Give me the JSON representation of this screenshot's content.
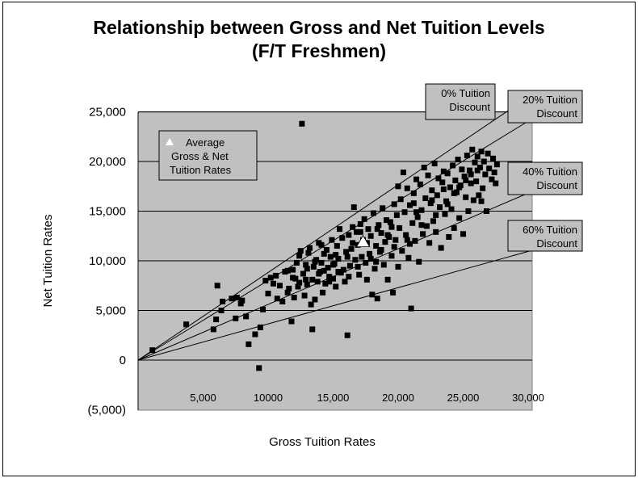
{
  "chart_data": {
    "type": "scatter",
    "title": "Relationship between Gross and Net Tuition Levels",
    "subtitle": "(F/T Freshmen)",
    "xlabel": "Gross Tuition Rates",
    "ylabel": "Net Tuition Rates",
    "xlim": [
      0,
      30000
    ],
    "ylim": [
      -5000,
      25000
    ],
    "x_tick_labels": [
      "5,000",
      "10000",
      "15,000",
      "20,000",
      "25,000",
      "30,000"
    ],
    "x_tick_values": [
      5000,
      10000,
      15000,
      20000,
      25000,
      30000
    ],
    "y_tick_labels": [
      "(5,000)",
      "0",
      "5,000",
      "10,000",
      "15,000",
      "20,000",
      "25,000"
    ],
    "y_tick_values": [
      -5000,
      0,
      5000,
      10000,
      15000,
      20000,
      25000
    ],
    "grid": "horizontal",
    "reference_lines": [
      {
        "label": "0% Tuition Discount",
        "slope": 1.0,
        "label_lines": [
          "0% Tuition",
          "Discount"
        ]
      },
      {
        "label": "20% Tuition Discount",
        "slope": 0.8,
        "label_lines": [
          "20% Tuition",
          "Discount"
        ]
      },
      {
        "label": "40% Tuition Discount",
        "slope": 0.6,
        "label_lines": [
          "40% Tuition",
          "Discount"
        ]
      },
      {
        "label": "60% Tuition Discount",
        "slope": 0.4,
        "label_lines": [
          "60% Tuition",
          "Discount"
        ]
      }
    ],
    "legend_lines": [
      "Average",
      "Gross & Net",
      "Tuition Rates"
    ],
    "average_point": {
      "x": 17300,
      "y": 11900
    },
    "points": [
      [
        1100,
        1000
      ],
      [
        3700,
        3600
      ],
      [
        5800,
        3100
      ],
      [
        6000,
        4100
      ],
      [
        6100,
        7500
      ],
      [
        6400,
        5000
      ],
      [
        6500,
        5900
      ],
      [
        7200,
        6200
      ],
      [
        7500,
        4200
      ],
      [
        7600,
        6300
      ],
      [
        7900,
        5700
      ],
      [
        8000,
        6000
      ],
      [
        8300,
        4400
      ],
      [
        8500,
        1600
      ],
      [
        9000,
        2600
      ],
      [
        9300,
        -800
      ],
      [
        9400,
        3300
      ],
      [
        9600,
        5100
      ],
      [
        9800,
        8000
      ],
      [
        10000,
        6700
      ],
      [
        10200,
        8300
      ],
      [
        10400,
        7700
      ],
      [
        10600,
        8500
      ],
      [
        10700,
        6200
      ],
      [
        10900,
        7500
      ],
      [
        11100,
        5900
      ],
      [
        11300,
        8900
      ],
      [
        11500,
        9000
      ],
      [
        11600,
        7200
      ],
      [
        11800,
        3900
      ],
      [
        11900,
        8300
      ],
      [
        12000,
        6300
      ],
      [
        12200,
        9800
      ],
      [
        12300,
        7400
      ],
      [
        12400,
        10500
      ],
      [
        12500,
        11000
      ],
      [
        12600,
        23800
      ],
      [
        12700,
        8700
      ],
      [
        12800,
        6500
      ],
      [
        12900,
        9600
      ],
      [
        13000,
        7600
      ],
      [
        13100,
        10800
      ],
      [
        13200,
        11300
      ],
      [
        13300,
        5600
      ],
      [
        13400,
        8100
      ],
      [
        13400,
        3100
      ],
      [
        13500,
        9400
      ],
      [
        13600,
        6100
      ],
      [
        13700,
        10100
      ],
      [
        13800,
        7900
      ],
      [
        13900,
        11800
      ],
      [
        14000,
        8900
      ],
      [
        14100,
        9800
      ],
      [
        14200,
        6800
      ],
      [
        14300,
        10700
      ],
      [
        14400,
        7700
      ],
      [
        14500,
        11100
      ],
      [
        14600,
        9300
      ],
      [
        14700,
        8400
      ],
      [
        14800,
        10400
      ],
      [
        14900,
        12100
      ],
      [
        15000,
        8200
      ],
      [
        15100,
        9700
      ],
      [
        15200,
        7400
      ],
      [
        15300,
        11500
      ],
      [
        15400,
        10200
      ],
      [
        15500,
        13200
      ],
      [
        15600,
        8800
      ],
      [
        15700,
        12300
      ],
      [
        15800,
        9100
      ],
      [
        15900,
        7900
      ],
      [
        16000,
        10900
      ],
      [
        16100,
        2500
      ],
      [
        16200,
        12600
      ],
      [
        16300,
        9500
      ],
      [
        16400,
        11200
      ],
      [
        16500,
        13400
      ],
      [
        16600,
        15400
      ],
      [
        16700,
        10100
      ],
      [
        16800,
        12900
      ],
      [
        16900,
        11600
      ],
      [
        17000,
        8600
      ],
      [
        17100,
        13700
      ],
      [
        17200,
        10400
      ],
      [
        17300,
        12100
      ],
      [
        17400,
        14200
      ],
      [
        17500,
        9800
      ],
      [
        17600,
        11800
      ],
      [
        17700,
        13200
      ],
      [
        17800,
        10700
      ],
      [
        17900,
        12500
      ],
      [
        18000,
        6600
      ],
      [
        18100,
        14800
      ],
      [
        18200,
        9200
      ],
      [
        18300,
        11500
      ],
      [
        18400,
        6200
      ],
      [
        18500,
        13600
      ],
      [
        18600,
        10900
      ],
      [
        18700,
        12800
      ],
      [
        18800,
        15300
      ],
      [
        18900,
        9600
      ],
      [
        19000,
        11900
      ],
      [
        19100,
        14100
      ],
      [
        19200,
        8100
      ],
      [
        19300,
        12400
      ],
      [
        19400,
        13900
      ],
      [
        19500,
        10500
      ],
      [
        19600,
        6800
      ],
      [
        19700,
        15700
      ],
      [
        19800,
        12100
      ],
      [
        19900,
        14600
      ],
      [
        20000,
        9400
      ],
      [
        20100,
        13300
      ],
      [
        20200,
        16200
      ],
      [
        20300,
        11000
      ],
      [
        20400,
        18900
      ],
      [
        20500,
        14900
      ],
      [
        20600,
        12600
      ],
      [
        20700,
        17300
      ],
      [
        20800,
        10300
      ],
      [
        20900,
        15600
      ],
      [
        21000,
        5200
      ],
      [
        21100,
        13800
      ],
      [
        21200,
        16800
      ],
      [
        21300,
        12000
      ],
      [
        21400,
        18200
      ],
      [
        21500,
        14400
      ],
      [
        21600,
        9900
      ],
      [
        21700,
        17700
      ],
      [
        21800,
        15100
      ],
      [
        21900,
        12700
      ],
      [
        22000,
        19400
      ],
      [
        22100,
        16300
      ],
      [
        22200,
        13500
      ],
      [
        22300,
        18600
      ],
      [
        22400,
        11800
      ],
      [
        22500,
        15800
      ],
      [
        22600,
        17100
      ],
      [
        22700,
        14000
      ],
      [
        22800,
        19800
      ],
      [
        22900,
        12900
      ],
      [
        23000,
        16600
      ],
      [
        23100,
        18300
      ],
      [
        23200,
        15400
      ],
      [
        23300,
        11300
      ],
      [
        23400,
        17900
      ],
      [
        23500,
        19000
      ],
      [
        23600,
        14700
      ],
      [
        23700,
        16000
      ],
      [
        23800,
        18800
      ],
      [
        23900,
        12400
      ],
      [
        24000,
        17400
      ],
      [
        24100,
        15200
      ],
      [
        24200,
        19600
      ],
      [
        24300,
        13300
      ],
      [
        24400,
        18100
      ],
      [
        24500,
        16900
      ],
      [
        24600,
        20200
      ],
      [
        24700,
        14300
      ],
      [
        24800,
        17600
      ],
      [
        24900,
        19200
      ],
      [
        25000,
        12700
      ],
      [
        25100,
        18500
      ],
      [
        25200,
        16400
      ],
      [
        25300,
        20600
      ],
      [
        25400,
        15000
      ],
      [
        25500,
        19100
      ],
      [
        25600,
        17800
      ],
      [
        25700,
        21200
      ],
      [
        25800,
        16100
      ],
      [
        25900,
        19900
      ],
      [
        26000,
        18000
      ],
      [
        26100,
        20500
      ],
      [
        26200,
        16600
      ],
      [
        26300,
        19400
      ],
      [
        26400,
        21000
      ],
      [
        26500,
        17300
      ],
      [
        26600,
        20000
      ],
      [
        26700,
        18700
      ],
      [
        26800,
        15000
      ],
      [
        26900,
        20800
      ],
      [
        27000,
        19300
      ],
      [
        27200,
        18200
      ],
      [
        27300,
        20300
      ],
      [
        27400,
        18900
      ],
      [
        27500,
        17800
      ],
      [
        27600,
        19700
      ],
      [
        16200,
        8400
      ],
      [
        15400,
        8900
      ],
      [
        14700,
        7900
      ],
      [
        13900,
        8700
      ],
      [
        16900,
        9400
      ],
      [
        17600,
        8100
      ],
      [
        18300,
        9900
      ],
      [
        12100,
        8200
      ],
      [
        11500,
        6800
      ],
      [
        13000,
        9200
      ],
      [
        14100,
        11600
      ],
      [
        15200,
        10600
      ],
      [
        16500,
        11800
      ],
      [
        17900,
        10200
      ],
      [
        18700,
        11100
      ],
      [
        19500,
        13400
      ],
      [
        20700,
        12100
      ],
      [
        21400,
        14900
      ],
      [
        22600,
        16100
      ],
      [
        23500,
        17200
      ],
      [
        24300,
        16800
      ],
      [
        25200,
        18100
      ],
      [
        26100,
        19100
      ],
      [
        19200,
        12600
      ],
      [
        18400,
        13200
      ],
      [
        17100,
        12900
      ],
      [
        16100,
        10400
      ],
      [
        15000,
        9600
      ],
      [
        14300,
        9000
      ],
      [
        13600,
        9900
      ],
      [
        12900,
        8100
      ],
      [
        12400,
        7800
      ],
      [
        11900,
        9100
      ],
      [
        21800,
        13600
      ],
      [
        22900,
        14600
      ],
      [
        23800,
        15700
      ],
      [
        24700,
        17400
      ],
      [
        25600,
        18700
      ],
      [
        26400,
        16000
      ],
      [
        20000,
        17500
      ],
      [
        21200,
        15800
      ],
      [
        19700,
        11400
      ],
      [
        20900,
        11700
      ]
    ]
  }
}
